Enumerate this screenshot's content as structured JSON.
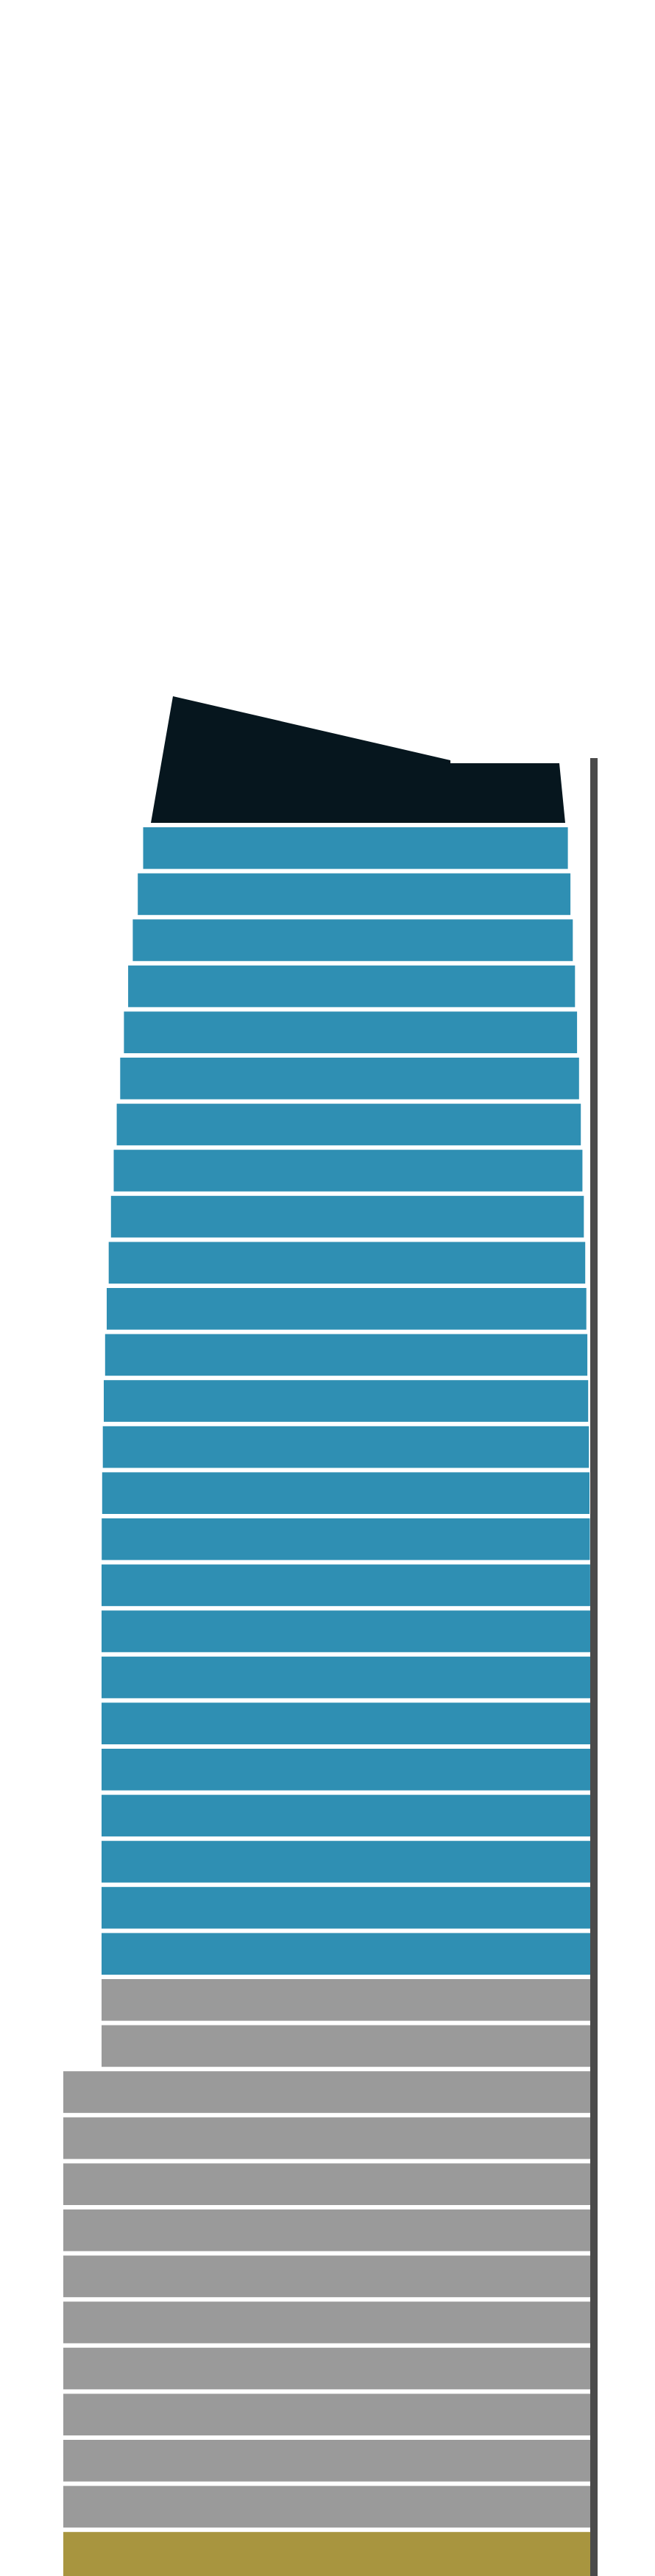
{
  "diagram": {
    "type": "building-elevation",
    "colors": {
      "background": "#ffffff",
      "crown": "#06161e",
      "glass": "#2f8fb3",
      "podium": "#9a9a9a",
      "base": "#a8953f",
      "floor_line": "#f4f4f4",
      "shadow": "#2b2b2b"
    },
    "sections": [
      {
        "name": "crown",
        "floor_count": 1
      },
      {
        "name": "glass-tower",
        "floor_count": 25
      },
      {
        "name": "upper-podium",
        "floor_count": 2
      },
      {
        "name": "lower-podium",
        "floor_count": 10
      },
      {
        "name": "base",
        "floor_count": 1
      }
    ]
  }
}
